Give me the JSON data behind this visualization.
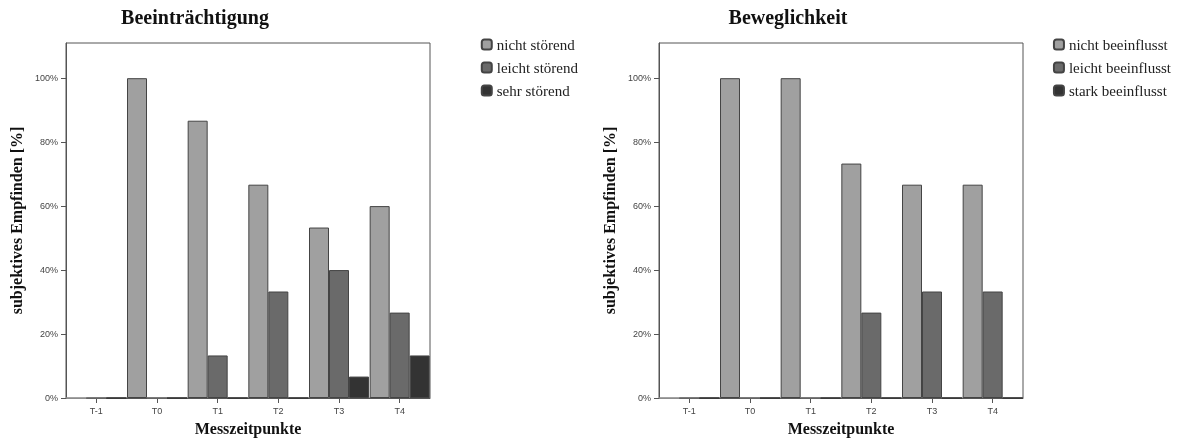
{
  "chart_data": [
    {
      "type": "bar",
      "title": "Beeinträchtigung",
      "xlabel": "Messzeitpunkte",
      "ylabel": "subjektives Empfinden [%]",
      "categories": [
        "T-1",
        "T0",
        "T1",
        "T2",
        "T3",
        "T4"
      ],
      "series": [
        {
          "name": "nicht störend",
          "color": "#a0a0a0",
          "values": [
            0,
            100,
            86.7,
            66.7,
            53.3,
            60
          ]
        },
        {
          "name": "leicht störend",
          "color": "#6a6a6a",
          "values": [
            0,
            0,
            13.3,
            33.3,
            40,
            26.7
          ]
        },
        {
          "name": "sehr störend",
          "color": "#333333",
          "values": [
            0,
            0,
            0,
            0,
            6.7,
            13.3
          ]
        }
      ],
      "ylim": [
        0,
        111
      ],
      "yticks": [
        {
          "value": 0,
          "label": "0%"
        },
        {
          "value": 20,
          "label": "20%"
        },
        {
          "value": 40,
          "label": "40%"
        },
        {
          "value": 60,
          "label": "60%"
        },
        {
          "value": 80,
          "label": "80%"
        },
        {
          "value": 100,
          "label": "100%"
        }
      ],
      "grid": false,
      "legend": "top right"
    },
    {
      "type": "bar",
      "title": "Beweglichkeit",
      "xlabel": "Messzeitpunkte",
      "ylabel": "subjektives Empfinden [%]",
      "categories": [
        "T-1",
        "T0",
        "T1",
        "T2",
        "T3",
        "T4"
      ],
      "series": [
        {
          "name": "nicht beeinflusst",
          "color": "#a0a0a0",
          "values": [
            0,
            100,
            100,
            73.3,
            66.7,
            66.7
          ]
        },
        {
          "name": "leicht beeinflusst",
          "color": "#6a6a6a",
          "values": [
            0,
            0,
            0,
            26.7,
            33.3,
            33.3
          ]
        },
        {
          "name": "stark beeinflusst",
          "color": "#333333",
          "values": [
            0,
            0,
            0,
            0,
            0,
            0
          ]
        }
      ],
      "ylim": [
        0,
        111
      ],
      "yticks": [
        {
          "value": 0,
          "label": "0%"
        },
        {
          "value": 20,
          "label": "20%"
        },
        {
          "value": 40,
          "label": "40%"
        },
        {
          "value": 60,
          "label": "60%"
        },
        {
          "value": 80,
          "label": "80%"
        },
        {
          "value": 100,
          "label": "100%"
        }
      ],
      "grid": false,
      "legend": "top right"
    }
  ]
}
